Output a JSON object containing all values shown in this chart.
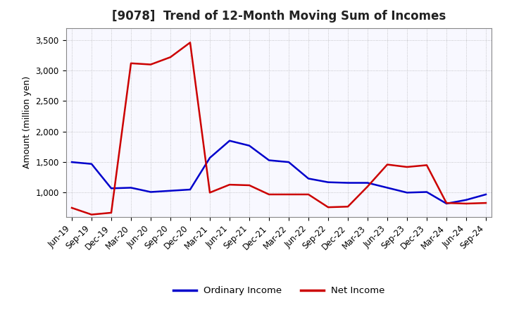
{
  "title": "[9078]  Trend of 12-Month Moving Sum of Incomes",
  "ylabel": "Amount (million yen)",
  "x_labels": [
    "Jun-19",
    "Sep-19",
    "Dec-19",
    "Mar-20",
    "Jun-20",
    "Sep-20",
    "Dec-20",
    "Mar-21",
    "Jun-21",
    "Sep-21",
    "Dec-21",
    "Mar-22",
    "Jun-22",
    "Sep-22",
    "Dec-22",
    "Mar-23",
    "Jun-23",
    "Sep-23",
    "Dec-23",
    "Mar-24",
    "Jun-24",
    "Sep-24"
  ],
  "ordinary_income": [
    1500,
    1470,
    1070,
    1080,
    1010,
    1030,
    1050,
    1570,
    1850,
    1770,
    1530,
    1500,
    1230,
    1170,
    1160,
    1160,
    1080,
    1000,
    1010,
    820,
    880,
    970
  ],
  "net_income": [
    750,
    640,
    670,
    3120,
    3100,
    3220,
    3460,
    1000,
    1130,
    1120,
    970,
    970,
    970,
    760,
    770,
    1100,
    1460,
    1420,
    1450,
    830,
    820,
    830
  ],
  "ordinary_color": "#0000cc",
  "net_color": "#cc0000",
  "ylim": [
    600,
    3700
  ],
  "yticks": [
    1000,
    1500,
    2000,
    2500,
    3000,
    3500
  ],
  "ytick_labels": [
    "1,000",
    "1,500",
    "2,000",
    "2,500",
    "3,000",
    "3,500"
  ],
  "background_color": "#ffffff",
  "plot_bg_color": "#f8f8ff",
  "grid_color": "#999999",
  "title_fontsize": 12,
  "axis_label_fontsize": 9,
  "tick_fontsize": 8.5,
  "legend_fontsize": 9.5,
  "line_width": 1.8
}
